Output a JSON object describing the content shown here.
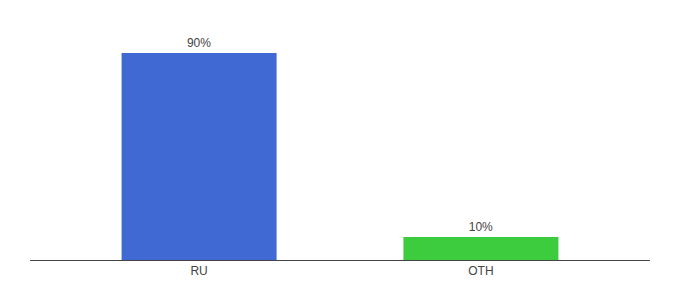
{
  "chart_data": {
    "type": "bar",
    "categories": [
      "RU",
      "OTH"
    ],
    "values": [
      90,
      10
    ],
    "value_labels": [
      "90%",
      "10%"
    ],
    "data_labels": true,
    "colors": [
      "#4169d4",
      "#3dcc3d"
    ],
    "ylim": [
      0,
      100
    ],
    "grid": false,
    "tick_labels": "x"
  }
}
